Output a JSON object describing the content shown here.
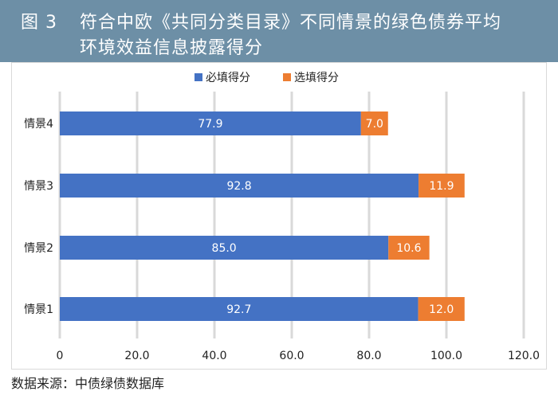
{
  "header": {
    "figure_label": "图 3",
    "title_line1": "符合中欧《共同分类目录》不同情景的绿色债券平均",
    "title_line2": "环境效益信息披露得分"
  },
  "source": "数据来源：中债绿债数据库",
  "colors": {
    "header_bg": "#6d8fa6",
    "required": "#4472c4",
    "optional": "#ed7d31",
    "grid": "#d9d9d9"
  },
  "chart_data": {
    "type": "bar",
    "orientation": "horizontal",
    "stacked": true,
    "title": "",
    "xlabel": "",
    "ylabel": "",
    "categories": [
      "情景1",
      "情景2",
      "情景3",
      "情景4"
    ],
    "series": [
      {
        "name": "必填得分",
        "values": [
          92.7,
          85.0,
          92.8,
          77.9
        ],
        "labels": [
          "92.7",
          "85.0",
          "92.8",
          "77.9"
        ],
        "color": "#4472c4"
      },
      {
        "name": "选填得分",
        "values": [
          12.0,
          10.6,
          11.9,
          7.0
        ],
        "labels": [
          "12.0",
          "10.6",
          "11.9",
          "7.0"
        ],
        "color": "#ed7d31"
      }
    ],
    "xlim": [
      0,
      120
    ],
    "xticks": [
      "0",
      "20.0",
      "40.0",
      "60.0",
      "80.0",
      "100.0",
      "120.0"
    ],
    "grid": true,
    "legend_position": "top"
  }
}
